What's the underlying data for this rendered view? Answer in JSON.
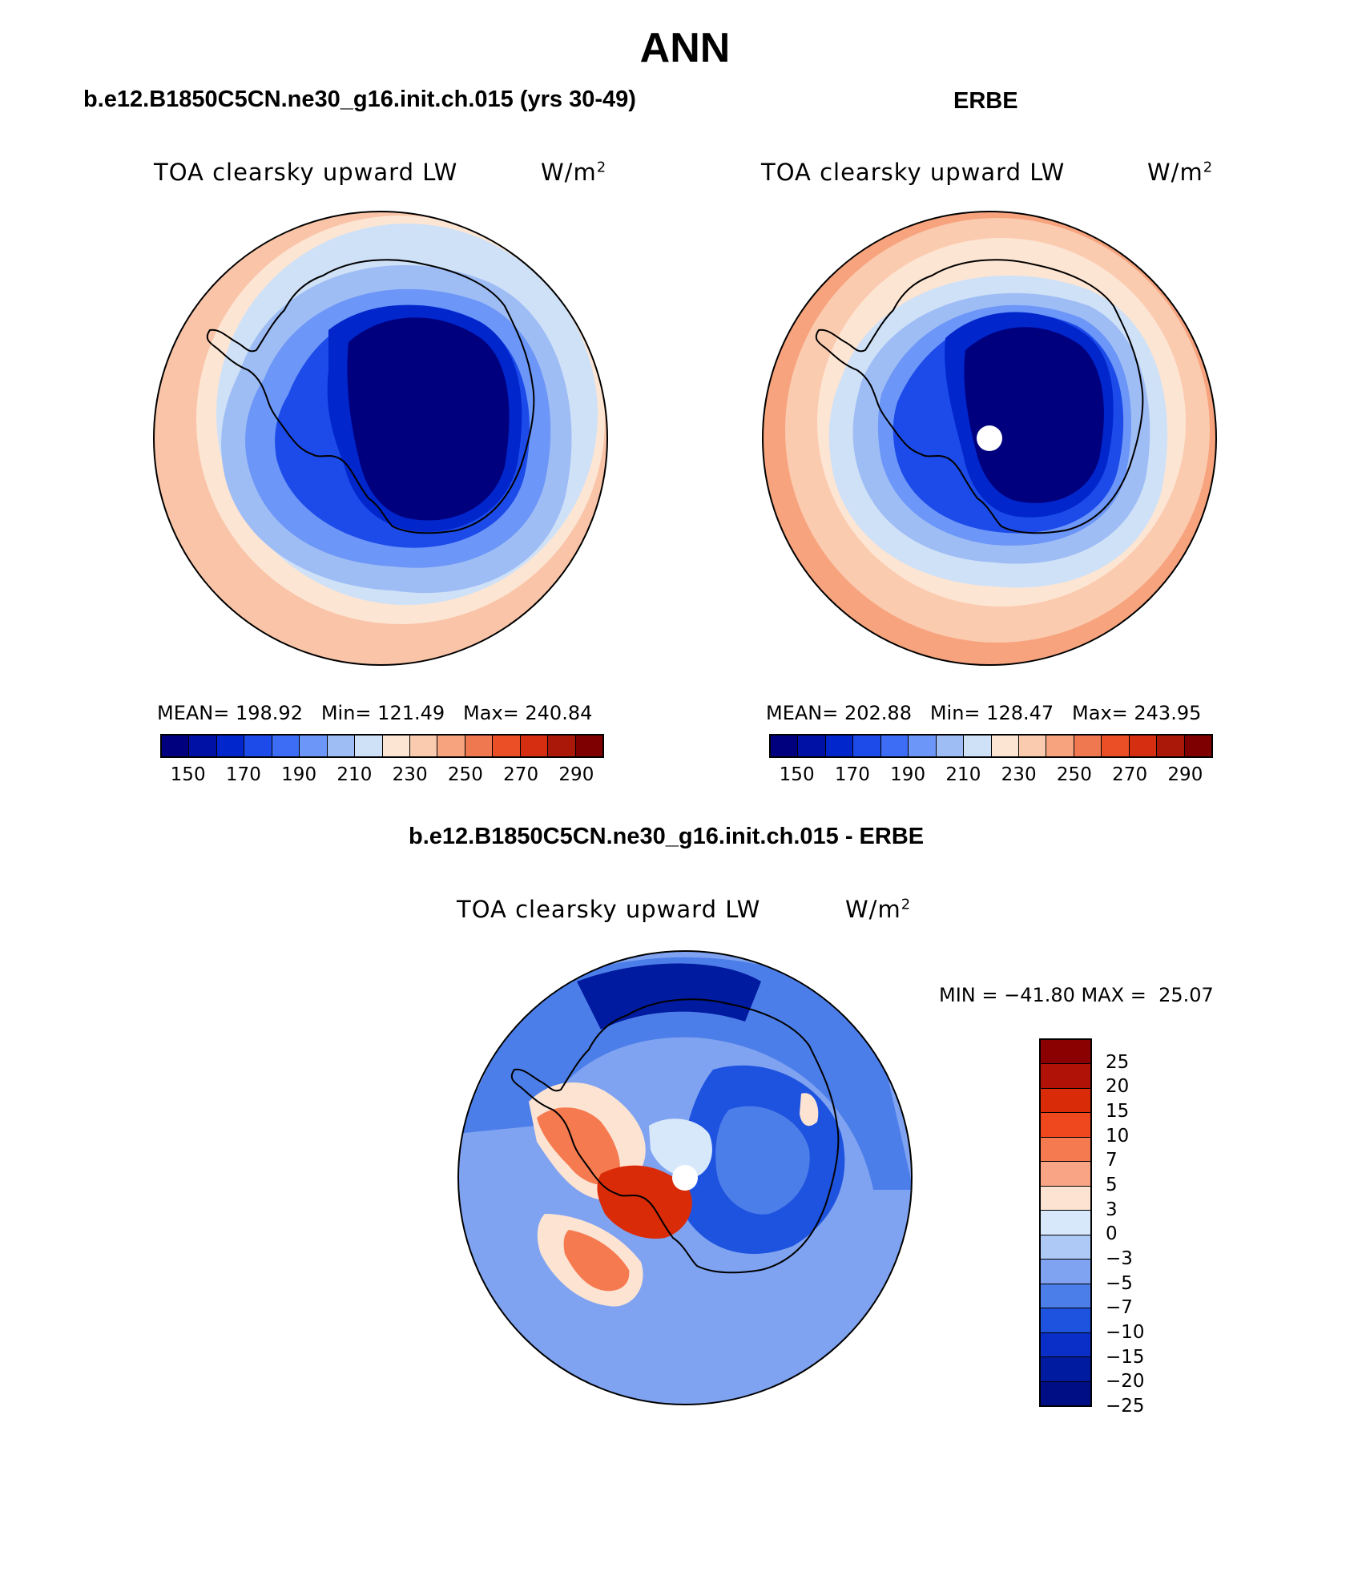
{
  "figure": {
    "season": "ANN",
    "variable": "TOA clearsky upward LW",
    "units_base": "W/m",
    "units_exp": "2"
  },
  "panels": {
    "model": {
      "title": "b.e12.B1850C5CN.ne30_g16.init.ch.015 (yrs 30-49)",
      "stats_text": "MEAN= 198.92   Min= 121.49   Max= 240.84",
      "mean": 198.92,
      "min": 121.49,
      "max": 240.84
    },
    "obs": {
      "title": "ERBE",
      "stats_text": "MEAN= 202.88   Min= 128.47   Max= 243.95",
      "mean": 202.88,
      "min": 128.47,
      "max": 243.95
    },
    "diff": {
      "title": "b.e12.B1850C5CN.ne30_g16.init.ch.015 - ERBE",
      "stats_text": "MIN = −41.80 MAX =  25.07",
      "min": -41.8,
      "max": 25.07
    }
  },
  "colorbars": {
    "absolute": {
      "colors": [
        "#00007f",
        "#0012a6",
        "#0026cc",
        "#1c4bea",
        "#3d6df5",
        "#6c96f7",
        "#9fbdf5",
        "#cfe1f7",
        "#fde5d3",
        "#fbcbb0",
        "#f7a37e",
        "#f07850",
        "#ea4f26",
        "#d52e10",
        "#aa180a",
        "#7f0000"
      ],
      "tick_labels": [
        "150",
        "170",
        "190",
        "210",
        "230",
        "250",
        "270",
        "290"
      ]
    },
    "difference": {
      "colors_top_to_bottom": [
        "#8b0000",
        "#b01208",
        "#d92b08",
        "#f0481e",
        "#f57a50",
        "#f9a585",
        "#fde3d2",
        "#d7e8fb",
        "#aec9f6",
        "#7fa3f1",
        "#4c7ee9",
        "#1e53e0",
        "#0a2fc8",
        "#001ba0",
        "#000e85"
      ],
      "tick_labels": [
        "25",
        "20",
        "15",
        "10",
        "7",
        "5",
        "3",
        "0",
        "−3",
        "−5",
        "−7",
        "−10",
        "−15",
        "−20",
        "−25"
      ]
    }
  },
  "map_colors": {
    "ocean_outer_warm": "#f9c4a8",
    "ocean_band_warm": "#fde5d3",
    "ocean_light_blue": "#cfe1f7",
    "ocean_mid_blue": "#9fbdf5",
    "coast_blue": "#6c96f7",
    "ice_blue": "#1c4bea",
    "ice_mid": "#0026cc",
    "ice_deep": "#00007f",
    "diff_outer": "#7fa3f1",
    "diff_mid": "#4c7ee9",
    "diff_deep": "#1e53e0",
    "diff_dark": "#001ba0",
    "diff_warm": "#f57a50",
    "diff_hot": "#d92b08",
    "diff_light_warm": "#fde3d2",
    "diff_light_blue": "#d7e8fb"
  }
}
